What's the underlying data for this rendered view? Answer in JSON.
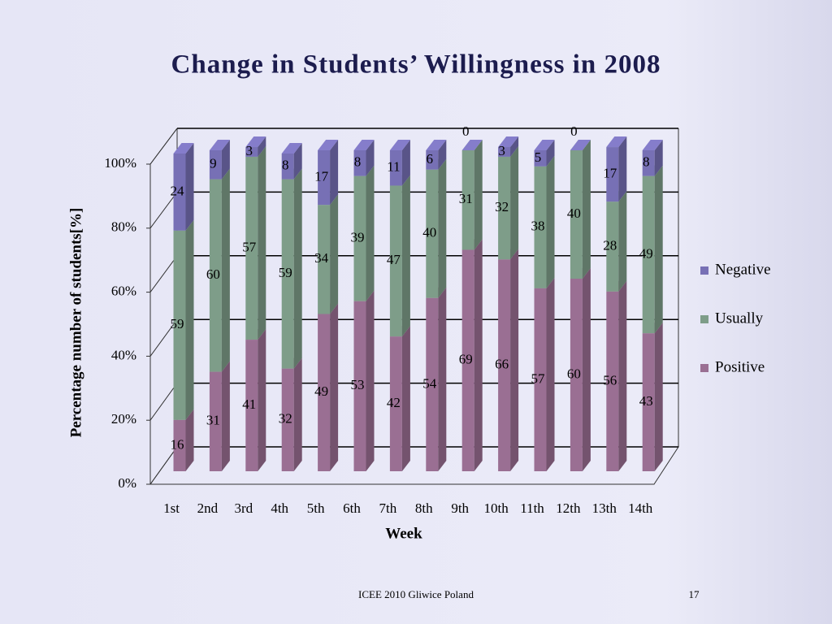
{
  "chart_data": {
    "type": "bar",
    "stacked": true,
    "title": "Change in Students’ Willingness in 2008",
    "x_label": "Week",
    "y_label": "Percentage number of students[%]",
    "categories": [
      "1st",
      "2nd",
      "3rd",
      "4th",
      "5th",
      "6th",
      "7th",
      "8th",
      "9th",
      "10th",
      "11th",
      "12th",
      "13th",
      "14th"
    ],
    "series": [
      {
        "name": "Positive",
        "color": "#9a6f93",
        "values": [
          16,
          31,
          41,
          32,
          49,
          53,
          42,
          54,
          69,
          66,
          57,
          60,
          56,
          43
        ]
      },
      {
        "name": "Usually",
        "color": "#7e9d89",
        "values": [
          59,
          60,
          57,
          59,
          34,
          39,
          47,
          40,
          31,
          32,
          38,
          40,
          28,
          49
        ]
      },
      {
        "name": "Negative",
        "color": "#7770b5",
        "values": [
          24,
          9,
          3,
          8,
          17,
          8,
          11,
          6,
          0,
          3,
          5,
          0,
          17,
          8
        ]
      }
    ],
    "ylim": [
      0,
      100
    ],
    "yticks": [
      {
        "value": 0,
        "label": "0%"
      },
      {
        "value": 20,
        "label": "20%"
      },
      {
        "value": 40,
        "label": "40%"
      },
      {
        "value": 60,
        "label": "60%"
      },
      {
        "value": 80,
        "label": "80%"
      },
      {
        "value": 100,
        "label": "100%"
      }
    ],
    "grid": true,
    "legend": "right"
  },
  "footer": {
    "text": "ICEE   2010   Gliwice   Poland",
    "page": "17"
  }
}
